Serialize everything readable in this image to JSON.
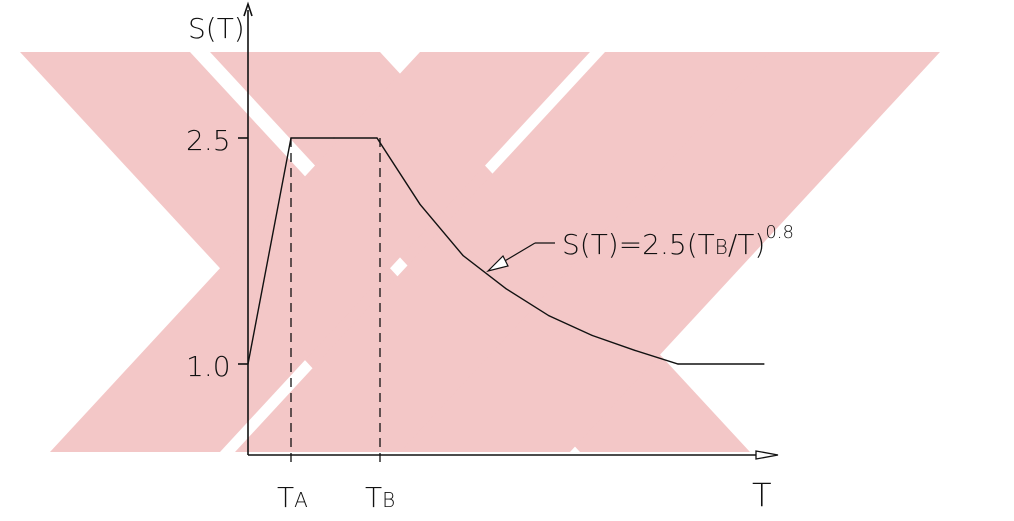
{
  "chart_data": {
    "type": "line",
    "title": "",
    "xlabel": "T",
    "ylabel": "S(T)",
    "ylim": [
      0,
      3.5
    ],
    "y_ticks": [
      "1.0",
      "2.5"
    ],
    "x_ticks": [
      {
        "main": "T",
        "sub": "A"
      },
      {
        "main": "T",
        "sub": "B"
      }
    ],
    "series": [
      {
        "x": [
          0.0,
          0.1,
          0.2,
          0.3,
          0.4,
          0.5,
          0.6,
          0.7,
          0.8,
          0.9,
          1.0,
          1.2
        ],
        "y": [
          1.0,
          2.5,
          2.5,
          2.5,
          2.06,
          1.72,
          1.5,
          1.32,
          1.19,
          1.09,
          1.0,
          1.0
        ]
      }
    ],
    "annotation": {
      "base": "S(T)=2.5(T",
      "sub": "B",
      "mid": "/T)",
      "sup": "0.8"
    },
    "grid": false,
    "watermark_color": "#f3c7c7"
  }
}
